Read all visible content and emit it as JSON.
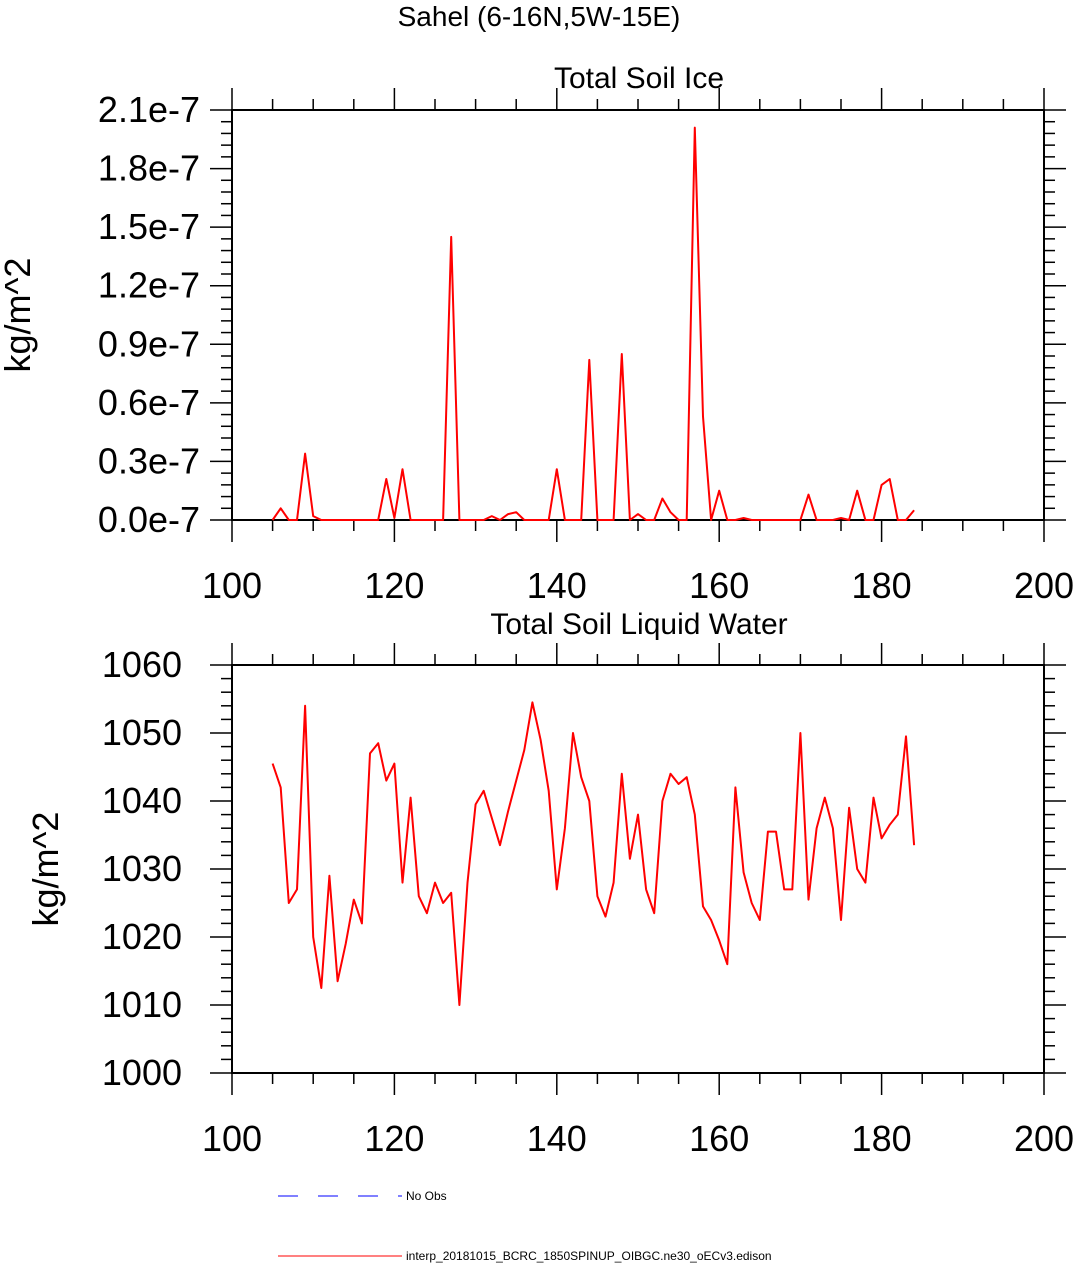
{
  "figure": {
    "suptitle": "Sahel (6-16N,5W-15E)"
  },
  "chart_data": [
    {
      "type": "line",
      "title": "Total Soil Ice",
      "xlabel": "",
      "ylabel": "kg/m^2",
      "xlim": [
        100,
        200
      ],
      "ylim": [
        0.0,
        2.1e-07
      ],
      "xticks": [
        100,
        120,
        140,
        160,
        180,
        200
      ],
      "xtick_labels": [
        "100",
        "120",
        "140",
        "160",
        "180",
        "200"
      ],
      "yticks": [
        0.0,
        3e-08,
        6e-08,
        9e-08,
        1.2e-07,
        1.5e-07,
        1.8e-07,
        2.1e-07
      ],
      "ytick_labels": [
        "0.0e-7",
        "0.3e-7",
        "0.6e-7",
        "0.9e-7",
        "1.2e-7",
        "1.5e-7",
        "1.8e-7",
        "2.1e-7"
      ],
      "grid": false,
      "series": [
        {
          "name": "interp_20181015_BCRC_1850SPINUP_OIBGC.ne30_oECv3.edison",
          "color": "#ff0000",
          "x": [
            105,
            106,
            107,
            108,
            109,
            110,
            111,
            112,
            113,
            114,
            115,
            116,
            117,
            118,
            119,
            120,
            121,
            122,
            123,
            124,
            125,
            126,
            127,
            128,
            129,
            130,
            131,
            132,
            133,
            134,
            135,
            136,
            137,
            138,
            139,
            140,
            141,
            142,
            143,
            144,
            145,
            146,
            147,
            148,
            149,
            150,
            151,
            152,
            153,
            154,
            155,
            156,
            157,
            158,
            159,
            160,
            161,
            162,
            163,
            164,
            165,
            166,
            167,
            168,
            169,
            170,
            171,
            172,
            173,
            174,
            175,
            176,
            177,
            178,
            179,
            180,
            181,
            182,
            183,
            184
          ],
          "values": [
            0,
            6e-09,
            0,
            0,
            3.4e-08,
            2e-09,
            0,
            0,
            0,
            0,
            0,
            0,
            0,
            0,
            2.1e-08,
            1e-09,
            2.6e-08,
            0,
            0,
            0,
            0,
            0,
            1.45e-07,
            0,
            0,
            0,
            0,
            2e-09,
            0,
            3e-09,
            4e-09,
            0,
            0,
            0,
            0,
            2.6e-08,
            0,
            0,
            0,
            8.2e-08,
            0,
            0,
            0,
            8.5e-08,
            0,
            3e-09,
            0,
            0,
            1.1e-08,
            4e-09,
            0,
            0,
            2.01e-07,
            5.3e-08,
            0,
            1.5e-08,
            0,
            0,
            1e-09,
            0,
            0,
            0,
            0,
            0,
            0,
            0,
            1.3e-08,
            0,
            0,
            0,
            1e-09,
            0,
            1.5e-08,
            0,
            0,
            1.8e-08,
            2.1e-08,
            0,
            0,
            5e-09
          ]
        }
      ]
    },
    {
      "type": "line",
      "title": "Total Soil Liquid Water",
      "xlabel": "",
      "ylabel": "kg/m^2",
      "xlim": [
        100,
        200
      ],
      "ylim": [
        1000,
        1060
      ],
      "xticks": [
        100,
        120,
        140,
        160,
        180,
        200
      ],
      "xtick_labels": [
        "100",
        "120",
        "140",
        "160",
        "180",
        "200"
      ],
      "yticks": [
        1000,
        1010,
        1020,
        1030,
        1040,
        1050,
        1060
      ],
      "ytick_labels": [
        "1000",
        "1010",
        "1020",
        "1030",
        "1040",
        "1050",
        "1060"
      ],
      "grid": false,
      "series": [
        {
          "name": "interp_20181015_BCRC_1850SPINUP_OIBGC.ne30_oECv3.edison",
          "color": "#ff0000",
          "x": [
            105,
            106,
            107,
            108,
            109,
            110,
            111,
            112,
            113,
            114,
            115,
            116,
            117,
            118,
            119,
            120,
            121,
            122,
            123,
            124,
            125,
            126,
            127,
            128,
            129,
            130,
            131,
            132,
            133,
            134,
            135,
            136,
            137,
            138,
            139,
            140,
            141,
            142,
            143,
            144,
            145,
            146,
            147,
            148,
            149,
            150,
            151,
            152,
            153,
            154,
            155,
            156,
            157,
            158,
            159,
            160,
            161,
            162,
            163,
            164,
            165,
            166,
            167,
            168,
            169,
            170,
            171,
            172,
            173,
            174,
            175,
            176,
            177,
            178,
            179,
            180,
            181,
            182,
            183,
            184
          ],
          "values": [
            1045.5,
            1042,
            1025,
            1027,
            1054,
            1020,
            1012.5,
            1029,
            1013.5,
            1019,
            1025.5,
            1022,
            1047,
            1048.5,
            1043,
            1045.5,
            1028,
            1040.5,
            1026,
            1023.5,
            1028,
            1025,
            1026.5,
            1010,
            1028,
            1039.5,
            1041.5,
            1037.5,
            1033.5,
            1038.5,
            1043,
            1047.5,
            1054.5,
            1049,
            1041.5,
            1027,
            1036,
            1050,
            1043.5,
            1040,
            1026,
            1023,
            1028,
            1044,
            1031.5,
            1038,
            1027,
            1023.5,
            1040,
            1044,
            1042.5,
            1043.5,
            1038,
            1024.5,
            1022.5,
            1019.5,
            1016,
            1042,
            1029.5,
            1025,
            1022.5,
            1035.5,
            1035.5,
            1027,
            1027,
            1050,
            1025.5,
            1036,
            1040.5,
            1036,
            1022.5,
            1039,
            1030,
            1028,
            1040.5,
            1034.5,
            1036.5,
            1038,
            1049.5,
            1033.5
          ]
        }
      ]
    }
  ],
  "legend": {
    "items": [
      {
        "label": "No Obs",
        "color": "#0000ff",
        "style": "dashed"
      },
      {
        "label": "interp_20181015_BCRC_1850SPINUP_OIBGC.ne30_oECv3.edison",
        "color": "#ff0000",
        "style": "solid"
      }
    ]
  }
}
